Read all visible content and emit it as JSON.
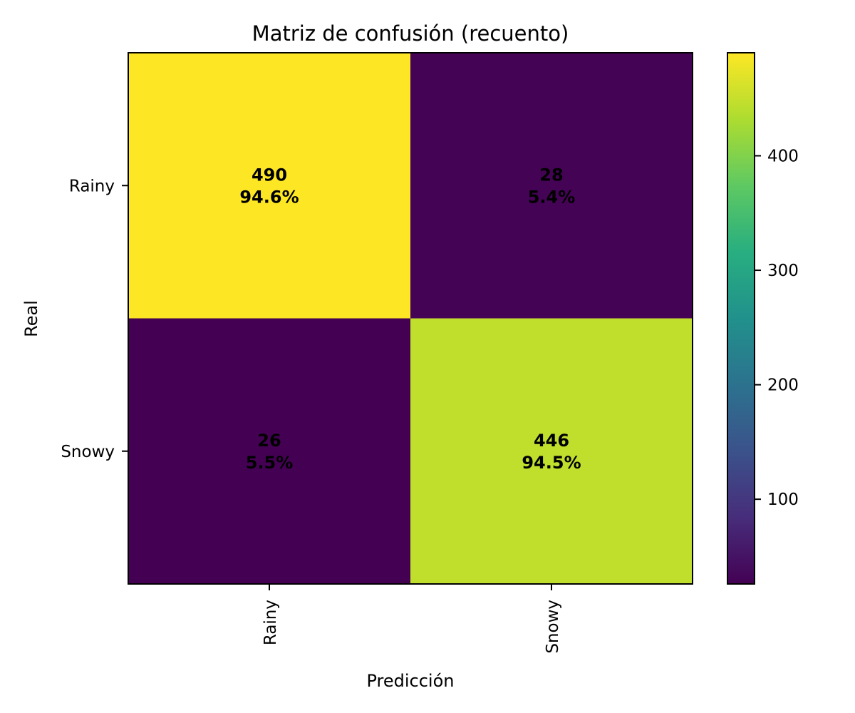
{
  "chart_data": {
    "type": "heatmap",
    "title": "Matriz de confusión (recuento)",
    "xlabel": "Predicción",
    "ylabel": "Real",
    "x_categories": [
      "Rainy",
      "Snowy"
    ],
    "y_categories": [
      "Rainy",
      "Snowy"
    ],
    "matrix": [
      [
        490,
        28
      ],
      [
        26,
        446
      ]
    ],
    "percent_labels": [
      [
        "94.6%",
        "5.4%"
      ],
      [
        "5.5%",
        "94.5%"
      ]
    ],
    "colormap": "viridis",
    "colorbar": {
      "min": 26,
      "max": 490,
      "ticks": [
        100,
        200,
        300,
        400
      ]
    },
    "grid": false
  }
}
